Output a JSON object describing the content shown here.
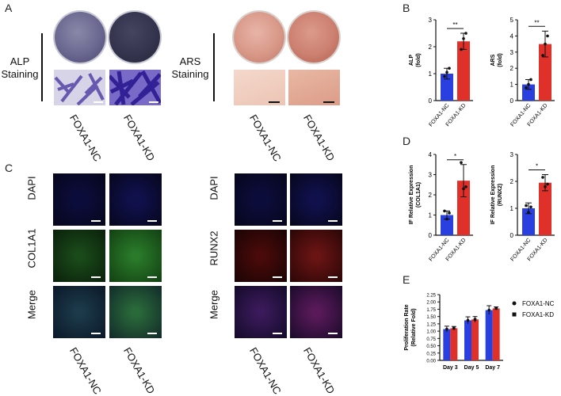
{
  "panels": {
    "a": "A",
    "b": "B",
    "c": "C",
    "d": "D",
    "e": "E"
  },
  "staining": {
    "alp_label_line1": "ALP",
    "alp_label_line2": "Staining",
    "ars_label_line1": "ARS",
    "ars_label_line2": "Staining",
    "groups": [
      "FOXA1-NC",
      "FOXA1-KD"
    ]
  },
  "fluorescence": {
    "left_rows": [
      "DAPI",
      "COL1A1",
      "Merge"
    ],
    "right_rows": [
      "DAPI",
      "RUNX2",
      "Merge"
    ],
    "groups": [
      "FOXA1-NC",
      "FOXA1-KD"
    ]
  },
  "colors": {
    "nc": "#2a3fe0",
    "kd": "#e0302a",
    "alp_dish": "#4a4870",
    "ars_dish": "#d08878"
  },
  "chart_data": [
    {
      "id": "alp",
      "type": "bar",
      "categories": [
        "FOXA1-NC",
        "FOXA1-KD"
      ],
      "values": [
        1.0,
        2.2
      ],
      "errors": [
        0.2,
        0.3
      ],
      "points": [
        [
          0.9,
          1.05,
          1.2
        ],
        [
          1.9,
          2.3,
          2.5
        ]
      ],
      "ylabel_line1": "ALP",
      "ylabel_line2": "(fold)",
      "ylim": [
        0,
        3
      ],
      "yticks": [
        "0",
        "1",
        "2",
        "3"
      ],
      "significance": "**"
    },
    {
      "id": "ars",
      "type": "bar",
      "categories": [
        "FOXA1-NC",
        "FOXA1-KD"
      ],
      "values": [
        1.0,
        3.5
      ],
      "errors": [
        0.3,
        0.8
      ],
      "points": [
        [
          0.8,
          1.0,
          1.3
        ],
        [
          2.8,
          3.5,
          4.0
        ]
      ],
      "ylabel_line1": "ARS",
      "ylabel_line2": "(fold)",
      "ylim": [
        0,
        5
      ],
      "yticks": [
        "0",
        "1",
        "2",
        "3",
        "4",
        "5"
      ],
      "significance": "**"
    },
    {
      "id": "col1a1",
      "type": "bar",
      "categories": [
        "FOXA1-NC",
        "FOXA1-KD"
      ],
      "values": [
        1.0,
        2.7
      ],
      "errors": [
        0.2,
        0.8
      ],
      "points": [
        [
          1.2,
          0.8,
          1.1
        ],
        [
          3.6,
          2.3,
          2.4
        ]
      ],
      "ylabel_line1": "IF Relative Expression",
      "ylabel_line2": "(COL1A1)",
      "ylim": [
        0,
        4
      ],
      "yticks": [
        "0",
        "1",
        "2",
        "3",
        "4"
      ],
      "significance": "*"
    },
    {
      "id": "runx2",
      "type": "bar",
      "categories": [
        "FOXA1-NC",
        "FOXA1-KD"
      ],
      "values": [
        1.0,
        1.95
      ],
      "errors": [
        0.2,
        0.3
      ],
      "points": [
        [
          1.1,
          0.85,
          1.05
        ],
        [
          2.15,
          1.8,
          1.9
        ]
      ],
      "ylabel_line1": "IF Relative Expression",
      "ylabel_line2": "(RUNX2)",
      "ylim": [
        0,
        3
      ],
      "yticks": [
        "0",
        "1",
        "2",
        "3"
      ],
      "significance": "*"
    },
    {
      "id": "prolif",
      "type": "bar",
      "categories": [
        "Day 3",
        "Day 5",
        "Day 7"
      ],
      "series": [
        {
          "name": "FOXA1-NC",
          "values": [
            1.07,
            1.37,
            1.72
          ],
          "errors": [
            0.1,
            0.12,
            0.15
          ],
          "marker": "circle"
        },
        {
          "name": "FOXA1-KD",
          "values": [
            1.1,
            1.4,
            1.78
          ],
          "errors": [
            0.06,
            0.1,
            0.05
          ],
          "marker": "square"
        }
      ],
      "ylabel_line1": "Proliferation Rate",
      "ylabel_line2": "(Relative Fold)",
      "ylim": [
        0,
        2.25
      ],
      "yticks": [
        "0.00",
        "0.25",
        "0.50",
        "0.75",
        "1.00",
        "1.25",
        "1.50",
        "1.75",
        "2.00",
        "2.25"
      ],
      "legend": "right"
    }
  ]
}
